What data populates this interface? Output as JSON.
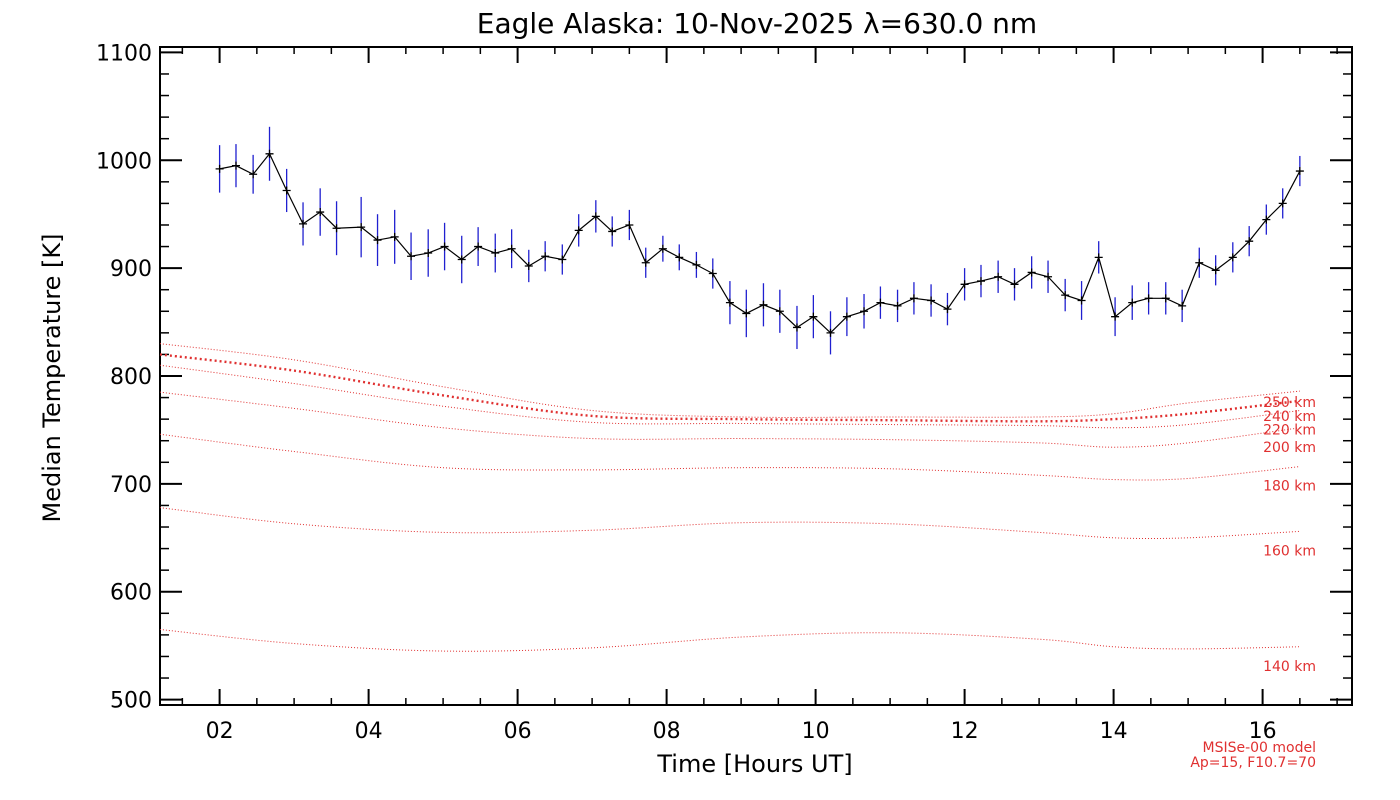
{
  "chart_data": {
    "type": "line",
    "title": "Eagle Alaska: 10-Nov-2025 λ=630.0 nm",
    "xlabel": "Time [Hours UT]",
    "ylabel": "Median Temperature [K]",
    "xlim": [
      1.2,
      17.2
    ],
    "ylim": [
      495,
      1105
    ],
    "x_ticks": [
      2,
      4,
      6,
      8,
      10,
      12,
      14,
      16
    ],
    "x_tick_labels": [
      "02",
      "04",
      "06",
      "08",
      "10",
      "12",
      "14",
      "16"
    ],
    "y_ticks": [
      500,
      600,
      700,
      800,
      900,
      1000,
      1100
    ],
    "y_tick_labels": [
      "500",
      "600",
      "700",
      "800",
      "900",
      "1000",
      "1100"
    ],
    "footnote_lines": [
      "MSISe-00 model",
      "Ap=15, F10.7=70"
    ],
    "colors": {
      "data_line": "#000000",
      "error_bars": "#2020d0",
      "model": "#e03030"
    },
    "measured": {
      "name": "Median temperature",
      "x": [
        2.0,
        2.22,
        2.45,
        2.67,
        2.9,
        3.12,
        3.35,
        3.57,
        3.9,
        4.12,
        4.35,
        4.57,
        4.8,
        5.02,
        5.25,
        5.47,
        5.7,
        5.92,
        6.15,
        6.37,
        6.6,
        6.82,
        7.05,
        7.27,
        7.5,
        7.72,
        7.95,
        8.17,
        8.4,
        8.62,
        8.85,
        9.07,
        9.3,
        9.52,
        9.75,
        9.97,
        10.2,
        10.42,
        10.65,
        10.87,
        11.1,
        11.32,
        11.55,
        11.77,
        12.0,
        12.22,
        12.45,
        12.67,
        12.9,
        13.12,
        13.35,
        13.57,
        13.8,
        14.02,
        14.25,
        14.47,
        14.7,
        14.92,
        15.15,
        15.37,
        15.6,
        15.82,
        16.05,
        16.27,
        16.5
      ],
      "y": [
        992,
        995,
        987,
        1006,
        972,
        941,
        952,
        937,
        938,
        926,
        929,
        911,
        914,
        920,
        908,
        920,
        914,
        918,
        902,
        911,
        908,
        935,
        948,
        934,
        940,
        905,
        918,
        910,
        903,
        895,
        868,
        858,
        866,
        860,
        845,
        855,
        840,
        855,
        860,
        868,
        865,
        872,
        870,
        862,
        885,
        888,
        892,
        885,
        896,
        892,
        875,
        870,
        910,
        855,
        868,
        872,
        872,
        865,
        905,
        898,
        910,
        925,
        945,
        960,
        990
      ],
      "err": [
        22,
        20,
        18,
        25,
        20,
        20,
        22,
        25,
        28,
        24,
        25,
        22,
        22,
        22,
        22,
        18,
        18,
        18,
        15,
        14,
        14,
        15,
        15,
        14,
        14,
        14,
        12,
        12,
        12,
        14,
        20,
        22,
        20,
        20,
        20,
        20,
        20,
        18,
        16,
        15,
        15,
        15,
        15,
        15,
        15,
        15,
        15,
        15,
        15,
        15,
        15,
        18,
        15,
        18,
        16,
        15,
        15,
        15,
        14,
        14,
        14,
        14,
        14,
        14,
        14
      ]
    },
    "model_series": [
      {
        "name": "250 km",
        "label": "250 km",
        "x": [
          1.2,
          3,
          5,
          7,
          9,
          11,
          13,
          14,
          15,
          16.5
        ],
        "y": [
          830,
          815,
          790,
          768,
          762,
          762,
          762,
          765,
          775,
          786
        ]
      },
      {
        "name": "240 km",
        "label": "240 km",
        "x": [
          1.2,
          3,
          5,
          7,
          9,
          11,
          13,
          14,
          15,
          16.5
        ],
        "y": [
          820,
          805,
          782,
          763,
          760,
          759,
          758,
          760,
          765,
          777
        ]
      },
      {
        "name": "220 km",
        "label": "220 km",
        "x": [
          1.2,
          3,
          5,
          7,
          9,
          11,
          13,
          14,
          15,
          16.5
        ],
        "y": [
          810,
          793,
          772,
          757,
          756,
          755,
          754,
          752,
          755,
          768
        ]
      },
      {
        "name": "200 km",
        "label": "200 km",
        "x": [
          1.2,
          3,
          5,
          7,
          9,
          11,
          13,
          14,
          15,
          16.5
        ],
        "y": [
          785,
          770,
          752,
          742,
          742,
          741,
          738,
          734,
          738,
          752
        ]
      },
      {
        "name": "180 km",
        "label": "180 km",
        "x": [
          1.2,
          3,
          5,
          7,
          9,
          11,
          13,
          14,
          15,
          16.5
        ],
        "y": [
          746,
          730,
          715,
          713,
          715,
          714,
          708,
          704,
          705,
          716
        ]
      },
      {
        "name": "160 km",
        "label": "160 km",
        "x": [
          1.2,
          3,
          5,
          7,
          9,
          11,
          13,
          14,
          15,
          16.5
        ],
        "y": [
          678,
          663,
          655,
          657,
          664,
          663,
          655,
          650,
          650,
          656
        ]
      },
      {
        "name": "140 km",
        "label": "140 km",
        "x": [
          1.2,
          3,
          5,
          7,
          9,
          11,
          13,
          14,
          15,
          16.5
        ],
        "y": [
          565,
          552,
          545,
          548,
          558,
          562,
          556,
          549,
          547,
          549
        ]
      }
    ]
  }
}
